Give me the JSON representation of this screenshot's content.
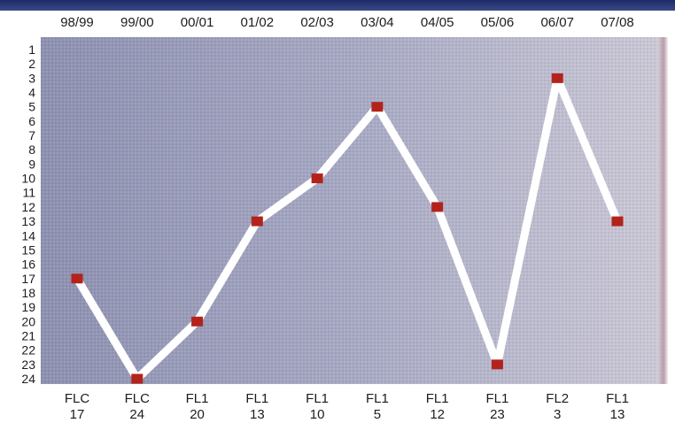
{
  "chart_data": {
    "type": "line",
    "seasons": [
      "98/99",
      "99/00",
      "00/01",
      "01/02",
      "02/03",
      "03/04",
      "04/05",
      "05/06",
      "06/07",
      "07/08"
    ],
    "leagues": [
      "FLC",
      "FLC",
      "FL1",
      "FL1",
      "FL1",
      "FL1",
      "FL1",
      "FL1",
      "FL2",
      "FL1"
    ],
    "positions": [
      17,
      24,
      20,
      13,
      10,
      5,
      12,
      23,
      3,
      13
    ],
    "y_tick_labels": [
      "1",
      "2",
      "3",
      "4",
      "5",
      "6",
      "7",
      "8",
      "9",
      "10",
      "11",
      "12",
      "13",
      "14",
      "15",
      "16",
      "17",
      "18",
      "19",
      "20",
      "21",
      "22",
      "23",
      "24"
    ],
    "ylim": [
      1,
      24
    ],
    "y_inverted": true,
    "grid": false,
    "colors": {
      "plot_background": "#9c9fbc",
      "line": "#ffffff",
      "marker": "#b3231b",
      "border": "#7a7c95",
      "top_band": "#23306e"
    }
  }
}
